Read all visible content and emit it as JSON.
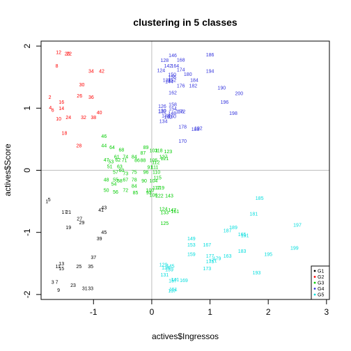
{
  "chart_data": {
    "type": "scatter",
    "title": "clustering in 5 classes",
    "xlabel": "actives$Ingressos",
    "ylabel": "actives$Score",
    "xlim": [
      -1.9,
      3.05
    ],
    "ylim": [
      -2.08,
      2.08
    ],
    "x_ticks": [
      -1,
      0,
      1,
      2,
      3
    ],
    "y_ticks": [
      -2,
      -1,
      0,
      1,
      2
    ],
    "reference_lines": {
      "x": 0,
      "y": 0
    },
    "legend": {
      "position": "bottom-right",
      "entries": [
        "G1",
        "G2",
        "G3",
        "G4",
        "G5"
      ]
    },
    "series": [
      {
        "name": "G1",
        "color": "#000000",
        "points": [
          {
            "label": "1",
            "x": -1.8,
            "y": -0.5
          },
          {
            "label": "5",
            "x": -1.76,
            "y": -0.47
          },
          {
            "label": "17",
            "x": -1.5,
            "y": -0.67
          },
          {
            "label": "21",
            "x": -1.43,
            "y": -0.67
          },
          {
            "label": "27",
            "x": -1.24,
            "y": -0.78
          },
          {
            "label": "29",
            "x": -1.2,
            "y": -0.84
          },
          {
            "label": "19",
            "x": -1.43,
            "y": -0.92
          },
          {
            "label": "43",
            "x": -0.82,
            "y": -0.6
          },
          {
            "label": "41",
            "x": -0.87,
            "y": -0.64
          },
          {
            "label": "45",
            "x": -0.82,
            "y": -1.0
          },
          {
            "label": "39",
            "x": -0.9,
            "y": -1.1
          },
          {
            "label": "37",
            "x": -1.0,
            "y": -1.4
          },
          {
            "label": "13",
            "x": -1.55,
            "y": -1.5
          },
          {
            "label": "11",
            "x": -1.61,
            "y": -1.55
          },
          {
            "label": "15",
            "x": -1.55,
            "y": -1.58
          },
          {
            "label": "25",
            "x": -1.25,
            "y": -1.55
          },
          {
            "label": "35",
            "x": -1.05,
            "y": -1.55
          },
          {
            "label": "3",
            "x": -1.7,
            "y": -1.8
          },
          {
            "label": "7",
            "x": -1.63,
            "y": -1.8
          },
          {
            "label": "9",
            "x": -1.6,
            "y": -1.93
          },
          {
            "label": "23",
            "x": -1.35,
            "y": -1.85
          },
          {
            "label": "31",
            "x": -1.15,
            "y": -1.9
          },
          {
            "label": "33",
            "x": -1.05,
            "y": -1.9
          }
        ]
      },
      {
        "name": "G2",
        "color": "#ff0000",
        "points": [
          {
            "label": "12",
            "x": -1.6,
            "y": 1.9
          },
          {
            "label": "20",
            "x": -1.45,
            "y": 1.88
          },
          {
            "label": "22",
            "x": -1.42,
            "y": 1.88
          },
          {
            "label": "8",
            "x": -1.63,
            "y": 1.68
          },
          {
            "label": "34",
            "x": -1.04,
            "y": 1.6
          },
          {
            "label": "42",
            "x": -0.86,
            "y": 1.6
          },
          {
            "label": "30",
            "x": -1.2,
            "y": 1.38
          },
          {
            "label": "2",
            "x": -1.75,
            "y": 1.18
          },
          {
            "label": "26",
            "x": -1.24,
            "y": 1.2
          },
          {
            "label": "36",
            "x": -1.04,
            "y": 1.18
          },
          {
            "label": "16",
            "x": -1.55,
            "y": 1.1
          },
          {
            "label": "4",
            "x": -1.74,
            "y": 1.01
          },
          {
            "label": "6",
            "x": -1.7,
            "y": 0.97
          },
          {
            "label": "14",
            "x": -1.55,
            "y": 1.0
          },
          {
            "label": "40",
            "x": -0.9,
            "y": 0.93
          },
          {
            "label": "10",
            "x": -1.6,
            "y": 0.83
          },
          {
            "label": "24",
            "x": -1.43,
            "y": 0.85
          },
          {
            "label": "32",
            "x": -1.17,
            "y": 0.85
          },
          {
            "label": "38",
            "x": -1.0,
            "y": 0.85
          },
          {
            "label": "18",
            "x": -1.5,
            "y": 0.6
          },
          {
            "label": "28",
            "x": -1.25,
            "y": 0.4
          }
        ]
      },
      {
        "name": "G3",
        "color": "#00cc00",
        "points": [
          {
            "label": "46",
            "x": -0.82,
            "y": 0.55
          },
          {
            "label": "44",
            "x": -0.82,
            "y": 0.4
          },
          {
            "label": "64",
            "x": -0.68,
            "y": 0.37
          },
          {
            "label": "68",
            "x": -0.52,
            "y": 0.33
          },
          {
            "label": "89",
            "x": -0.1,
            "y": 0.37
          },
          {
            "label": "103",
            "x": 0.03,
            "y": 0.32
          },
          {
            "label": "118",
            "x": 0.12,
            "y": 0.32
          },
          {
            "label": "123",
            "x": 0.28,
            "y": 0.3
          },
          {
            "label": "87",
            "x": -0.15,
            "y": 0.28
          },
          {
            "label": "61",
            "x": -0.6,
            "y": 0.22
          },
          {
            "label": "74",
            "x": -0.45,
            "y": 0.22
          },
          {
            "label": "84",
            "x": -0.3,
            "y": 0.22
          },
          {
            "label": "127",
            "x": 0.2,
            "y": 0.22
          },
          {
            "label": "121",
            "x": 0.22,
            "y": 0.19
          },
          {
            "label": "47",
            "x": -0.78,
            "y": 0.17
          },
          {
            "label": "53",
            "x": -0.7,
            "y": 0.14
          },
          {
            "label": "62",
            "x": -0.58,
            "y": 0.17
          },
          {
            "label": "71",
            "x": -0.47,
            "y": 0.16
          },
          {
            "label": "86",
            "x": -0.25,
            "y": 0.16
          },
          {
            "label": "88",
            "x": -0.15,
            "y": 0.16
          },
          {
            "label": "105",
            "x": 0.03,
            "y": 0.16
          },
          {
            "label": "112",
            "x": 0.07,
            "y": 0.13
          },
          {
            "label": "51",
            "x": -0.72,
            "y": 0.06
          },
          {
            "label": "63",
            "x": -0.55,
            "y": 0.06
          },
          {
            "label": "91",
            "x": -0.03,
            "y": 0.05
          },
          {
            "label": "111",
            "x": 0.05,
            "y": 0.05
          },
          {
            "label": "57",
            "x": -0.62,
            "y": -0.03
          },
          {
            "label": "60",
            "x": -0.52,
            "y": 0.0
          },
          {
            "label": "73",
            "x": -0.45,
            "y": -0.05
          },
          {
            "label": "75",
            "x": -0.3,
            "y": -0.03
          },
          {
            "label": "96",
            "x": -0.1,
            "y": -0.03
          },
          {
            "label": "110",
            "x": 0.08,
            "y": -0.03
          },
          {
            "label": "48",
            "x": -0.78,
            "y": -0.15
          },
          {
            "label": "55",
            "x": -0.62,
            "y": -0.15
          },
          {
            "label": "58",
            "x": -0.55,
            "y": -0.17
          },
          {
            "label": "67",
            "x": -0.45,
            "y": -0.15
          },
          {
            "label": "78",
            "x": -0.3,
            "y": -0.15
          },
          {
            "label": "90",
            "x": -0.13,
            "y": -0.17
          },
          {
            "label": "104",
            "x": 0.03,
            "y": -0.17
          },
          {
            "label": "115",
            "x": 0.1,
            "y": -0.12
          },
          {
            "label": "54",
            "x": -0.65,
            "y": -0.22
          },
          {
            "label": "84",
            "x": -0.3,
            "y": -0.25
          },
          {
            "label": "100",
            "x": -0.03,
            "y": -0.32
          },
          {
            "label": "117",
            "x": 0.08,
            "y": -0.28
          },
          {
            "label": "119",
            "x": 0.15,
            "y": -0.28
          },
          {
            "label": "50",
            "x": -0.78,
            "y": -0.32
          },
          {
            "label": "56",
            "x": -0.62,
            "y": -0.35
          },
          {
            "label": "72",
            "x": -0.45,
            "y": -0.32
          },
          {
            "label": "85",
            "x": -0.28,
            "y": -0.36
          },
          {
            "label": "93",
            "x": -0.05,
            "y": -0.36
          },
          {
            "label": "106",
            "x": 0.03,
            "y": -0.4
          },
          {
            "label": "122",
            "x": 0.13,
            "y": -0.41
          },
          {
            "label": "143",
            "x": 0.3,
            "y": -0.41
          },
          {
            "label": "124",
            "x": 0.2,
            "y": -0.62
          },
          {
            "label": "133",
            "x": 0.22,
            "y": -0.68
          },
          {
            "label": "147",
            "x": 0.35,
            "y": -0.64
          },
          {
            "label": "161",
            "x": 0.4,
            "y": -0.66
          },
          {
            "label": "125",
            "x": 0.22,
            "y": -0.85
          }
        ]
      },
      {
        "name": "G4",
        "color": "#3333dd",
        "points": [
          {
            "label": "146",
            "x": 0.36,
            "y": 1.85
          },
          {
            "label": "186",
            "x": 1.0,
            "y": 1.86
          },
          {
            "label": "128",
            "x": 0.22,
            "y": 1.77
          },
          {
            "label": "168",
            "x": 0.5,
            "y": 1.78
          },
          {
            "label": "142",
            "x": 0.28,
            "y": 1.68
          },
          {
            "label": "164",
            "x": 0.4,
            "y": 1.68
          },
          {
            "label": "124",
            "x": 0.16,
            "y": 1.61
          },
          {
            "label": "174",
            "x": 0.5,
            "y": 1.62
          },
          {
            "label": "194",
            "x": 1.0,
            "y": 1.6
          },
          {
            "label": "180",
            "x": 0.62,
            "y": 1.55
          },
          {
            "label": "150",
            "x": 0.35,
            "y": 1.54
          },
          {
            "label": "156",
            "x": 0.35,
            "y": 1.5
          },
          {
            "label": "136",
            "x": 0.26,
            "y": 1.45
          },
          {
            "label": "144",
            "x": 0.3,
            "y": 1.43
          },
          {
            "label": "152",
            "x": 0.35,
            "y": 1.45
          },
          {
            "label": "184",
            "x": 0.73,
            "y": 1.45
          },
          {
            "label": "176",
            "x": 0.5,
            "y": 1.36
          },
          {
            "label": "182",
            "x": 0.71,
            "y": 1.36
          },
          {
            "label": "190",
            "x": 1.2,
            "y": 1.33
          },
          {
            "label": "200",
            "x": 1.5,
            "y": 1.24
          },
          {
            "label": "162",
            "x": 0.36,
            "y": 1.25
          },
          {
            "label": "196",
            "x": 1.25,
            "y": 1.1
          },
          {
            "label": "158",
            "x": 0.36,
            "y": 1.06
          },
          {
            "label": "126",
            "x": 0.18,
            "y": 1.03
          },
          {
            "label": "154",
            "x": 0.36,
            "y": 0.99
          },
          {
            "label": "130",
            "x": 0.18,
            "y": 0.96
          },
          {
            "label": "132",
            "x": 0.18,
            "y": 0.95
          },
          {
            "label": "148",
            "x": 0.35,
            "y": 0.92
          },
          {
            "label": "166",
            "x": 0.48,
            "y": 0.95
          },
          {
            "label": "172",
            "x": 0.51,
            "y": 0.95
          },
          {
            "label": "198",
            "x": 1.4,
            "y": 0.92
          },
          {
            "label": "138",
            "x": 0.24,
            "y": 0.88
          },
          {
            "label": "140",
            "x": 0.28,
            "y": 0.86
          },
          {
            "label": "160",
            "x": 0.35,
            "y": 0.87
          },
          {
            "label": "134",
            "x": 0.2,
            "y": 0.79
          },
          {
            "label": "178",
            "x": 0.53,
            "y": 0.7
          },
          {
            "label": "188",
            "x": 0.75,
            "y": 0.66
          },
          {
            "label": "192",
            "x": 0.8,
            "y": 0.68
          },
          {
            "label": "170",
            "x": 0.53,
            "y": 0.47
          }
        ]
      },
      {
        "name": "G5",
        "color": "#00dddd",
        "points": [
          {
            "label": "185",
            "x": 1.85,
            "y": -0.45
          },
          {
            "label": "181",
            "x": 1.75,
            "y": -0.7
          },
          {
            "label": "197",
            "x": 2.5,
            "y": -0.88
          },
          {
            "label": "189",
            "x": 1.4,
            "y": -0.92
          },
          {
            "label": "187",
            "x": 1.3,
            "y": -0.97
          },
          {
            "label": "165",
            "x": 1.55,
            "y": -1.03
          },
          {
            "label": "191",
            "x": 1.6,
            "y": -1.05
          },
          {
            "label": "149",
            "x": 0.68,
            "y": -1.1
          },
          {
            "label": "153",
            "x": 0.68,
            "y": -1.2
          },
          {
            "label": "167",
            "x": 0.95,
            "y": -1.2
          },
          {
            "label": "199",
            "x": 2.45,
            "y": -1.25
          },
          {
            "label": "183",
            "x": 1.55,
            "y": -1.3
          },
          {
            "label": "195",
            "x": 2.0,
            "y": -1.35
          },
          {
            "label": "159",
            "x": 0.68,
            "y": -1.35
          },
          {
            "label": "177",
            "x": 1.0,
            "y": -1.38
          },
          {
            "label": "179",
            "x": 1.12,
            "y": -1.42
          },
          {
            "label": "163",
            "x": 1.3,
            "y": -1.38
          },
          {
            "label": "171",
            "x": 1.05,
            "y": -1.45
          },
          {
            "label": "175",
            "x": 1.0,
            "y": -1.47
          },
          {
            "label": "129",
            "x": 0.2,
            "y": -1.52
          },
          {
            "label": "145",
            "x": 0.32,
            "y": -1.54
          },
          {
            "label": "135",
            "x": 0.24,
            "y": -1.57
          },
          {
            "label": "139",
            "x": 0.3,
            "y": -1.6
          },
          {
            "label": "173",
            "x": 0.95,
            "y": -1.58
          },
          {
            "label": "193",
            "x": 1.8,
            "y": -1.65
          },
          {
            "label": "131",
            "x": 0.22,
            "y": -1.68
          },
          {
            "label": "157",
            "x": 0.36,
            "y": -1.78
          },
          {
            "label": "141",
            "x": 0.4,
            "y": -1.76
          },
          {
            "label": "169",
            "x": 0.55,
            "y": -1.77
          },
          {
            "label": "137",
            "x": 0.35,
            "y": -1.94
          },
          {
            "label": "151",
            "x": 0.37,
            "y": -1.92
          }
        ]
      }
    ]
  }
}
